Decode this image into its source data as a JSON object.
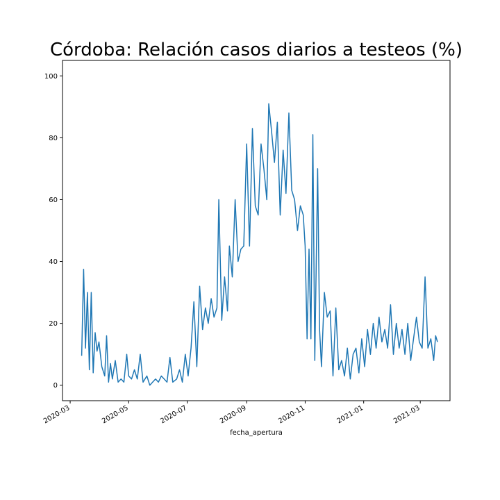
{
  "chart_data": {
    "type": "line",
    "title": "Córdoba: Relación casos diarios a testeos (%)",
    "xlabel": "fecha_apertura",
    "ylabel": "",
    "x_tick_labels": [
      "2020-03",
      "2020-05",
      "2020-07",
      "2020-09",
      "2020-11",
      "2021-01",
      "2021-03"
    ],
    "y_tick_labels": [
      "0",
      "20",
      "40",
      "60",
      "80",
      "100"
    ],
    "xlim": [
      "2020-02-22",
      "2021-04-01"
    ],
    "ylim": [
      -5,
      105
    ],
    "grid": false,
    "legend": "none",
    "line_color": "#1f77b4",
    "series": [
      {
        "x": [
          "2020-03-13",
          "2020-03-15",
          "2020-03-17",
          "2020-03-19",
          "2020-03-21",
          "2020-03-23",
          "2020-03-25",
          "2020-03-27",
          "2020-03-29",
          "2020-03-31",
          "2020-04-03",
          "2020-04-06",
          "2020-04-08",
          "2020-04-10",
          "2020-04-12",
          "2020-04-14",
          "2020-04-17",
          "2020-04-20",
          "2020-04-23",
          "2020-04-26",
          "2020-04-29",
          "2020-05-01",
          "2020-05-04",
          "2020-05-07",
          "2020-05-10",
          "2020-05-13",
          "2020-05-16",
          "2020-05-20",
          "2020-05-23",
          "2020-05-26",
          "2020-05-29",
          "2020-06-01",
          "2020-06-04",
          "2020-06-07",
          "2020-06-10",
          "2020-06-13",
          "2020-06-16",
          "2020-06-20",
          "2020-06-23",
          "2020-06-26",
          "2020-06-29",
          "2020-07-02",
          "2020-07-05",
          "2020-07-08",
          "2020-07-11",
          "2020-07-14",
          "2020-07-17",
          "2020-07-20",
          "2020-07-23",
          "2020-07-26",
          "2020-07-29",
          "2020-08-01",
          "2020-08-03",
          "2020-08-06",
          "2020-08-09",
          "2020-08-12",
          "2020-08-14",
          "2020-08-17",
          "2020-08-20",
          "2020-08-23",
          "2020-08-26",
          "2020-08-29",
          "2020-09-01",
          "2020-09-04",
          "2020-09-07",
          "2020-09-10",
          "2020-09-13",
          "2020-09-16",
          "2020-09-19",
          "2020-09-22",
          "2020-09-24",
          "2020-09-27",
          "2020-09-30",
          "2020-10-03",
          "2020-10-06",
          "2020-10-09",
          "2020-10-12",
          "2020-10-15",
          "2020-10-18",
          "2020-10-21",
          "2020-10-24",
          "2020-10-27",
          "2020-10-30",
          "2020-11-01",
          "2020-11-03",
          "2020-11-05",
          "2020-11-07",
          "2020-11-09",
          "2020-11-11",
          "2020-11-14",
          "2020-11-16",
          "2020-11-18",
          "2020-11-21",
          "2020-11-24",
          "2020-11-27",
          "2020-11-30",
          "2020-12-03",
          "2020-12-06",
          "2020-12-09",
          "2020-12-12",
          "2020-12-15",
          "2020-12-18",
          "2020-12-21",
          "2020-12-24",
          "2020-12-27",
          "2020-12-30",
          "2021-01-02",
          "2021-01-05",
          "2021-01-08",
          "2021-01-11",
          "2021-01-14",
          "2021-01-17",
          "2021-01-20",
          "2021-01-23",
          "2021-01-26",
          "2021-01-29",
          "2021-02-01",
          "2021-02-04",
          "2021-02-07",
          "2021-02-10",
          "2021-02-13",
          "2021-02-16",
          "2021-02-19",
          "2021-02-22",
          "2021-02-25",
          "2021-02-28",
          "2021-03-03",
          "2021-03-06",
          "2021-03-09",
          "2021-03-12",
          "2021-03-15",
          "2021-03-17",
          "2021-03-19"
        ],
        "values": [
          9.5,
          37.5,
          12,
          30,
          5,
          30,
          4,
          17,
          11,
          14,
          6,
          3,
          16,
          1,
          7,
          2,
          8,
          1,
          2,
          1,
          10,
          3,
          2,
          5,
          2,
          10,
          1,
          3,
          0,
          1,
          2,
          1,
          3,
          2,
          1,
          9,
          1,
          2,
          5,
          1,
          10,
          3,
          12,
          27,
          6,
          32,
          18,
          25,
          20,
          28,
          22,
          25,
          60,
          21,
          35,
          24,
          45,
          35,
          60,
          40,
          44,
          45,
          78,
          45,
          83,
          58,
          55,
          78,
          70,
          60,
          91,
          82,
          72,
          85,
          55,
          76,
          62,
          88,
          63,
          60,
          50,
          58,
          55,
          45,
          15,
          44,
          15,
          81,
          8,
          70,
          18,
          6,
          30,
          22,
          24,
          3,
          25,
          5,
          8,
          3,
          12,
          2,
          10,
          12,
          4,
          15,
          6,
          18,
          10,
          20,
          12,
          22,
          14,
          18,
          12,
          26,
          10,
          20,
          12,
          18,
          10,
          20,
          8,
          15,
          22,
          14,
          12,
          35,
          12,
          15,
          8,
          16,
          14
        ]
      }
    ]
  }
}
